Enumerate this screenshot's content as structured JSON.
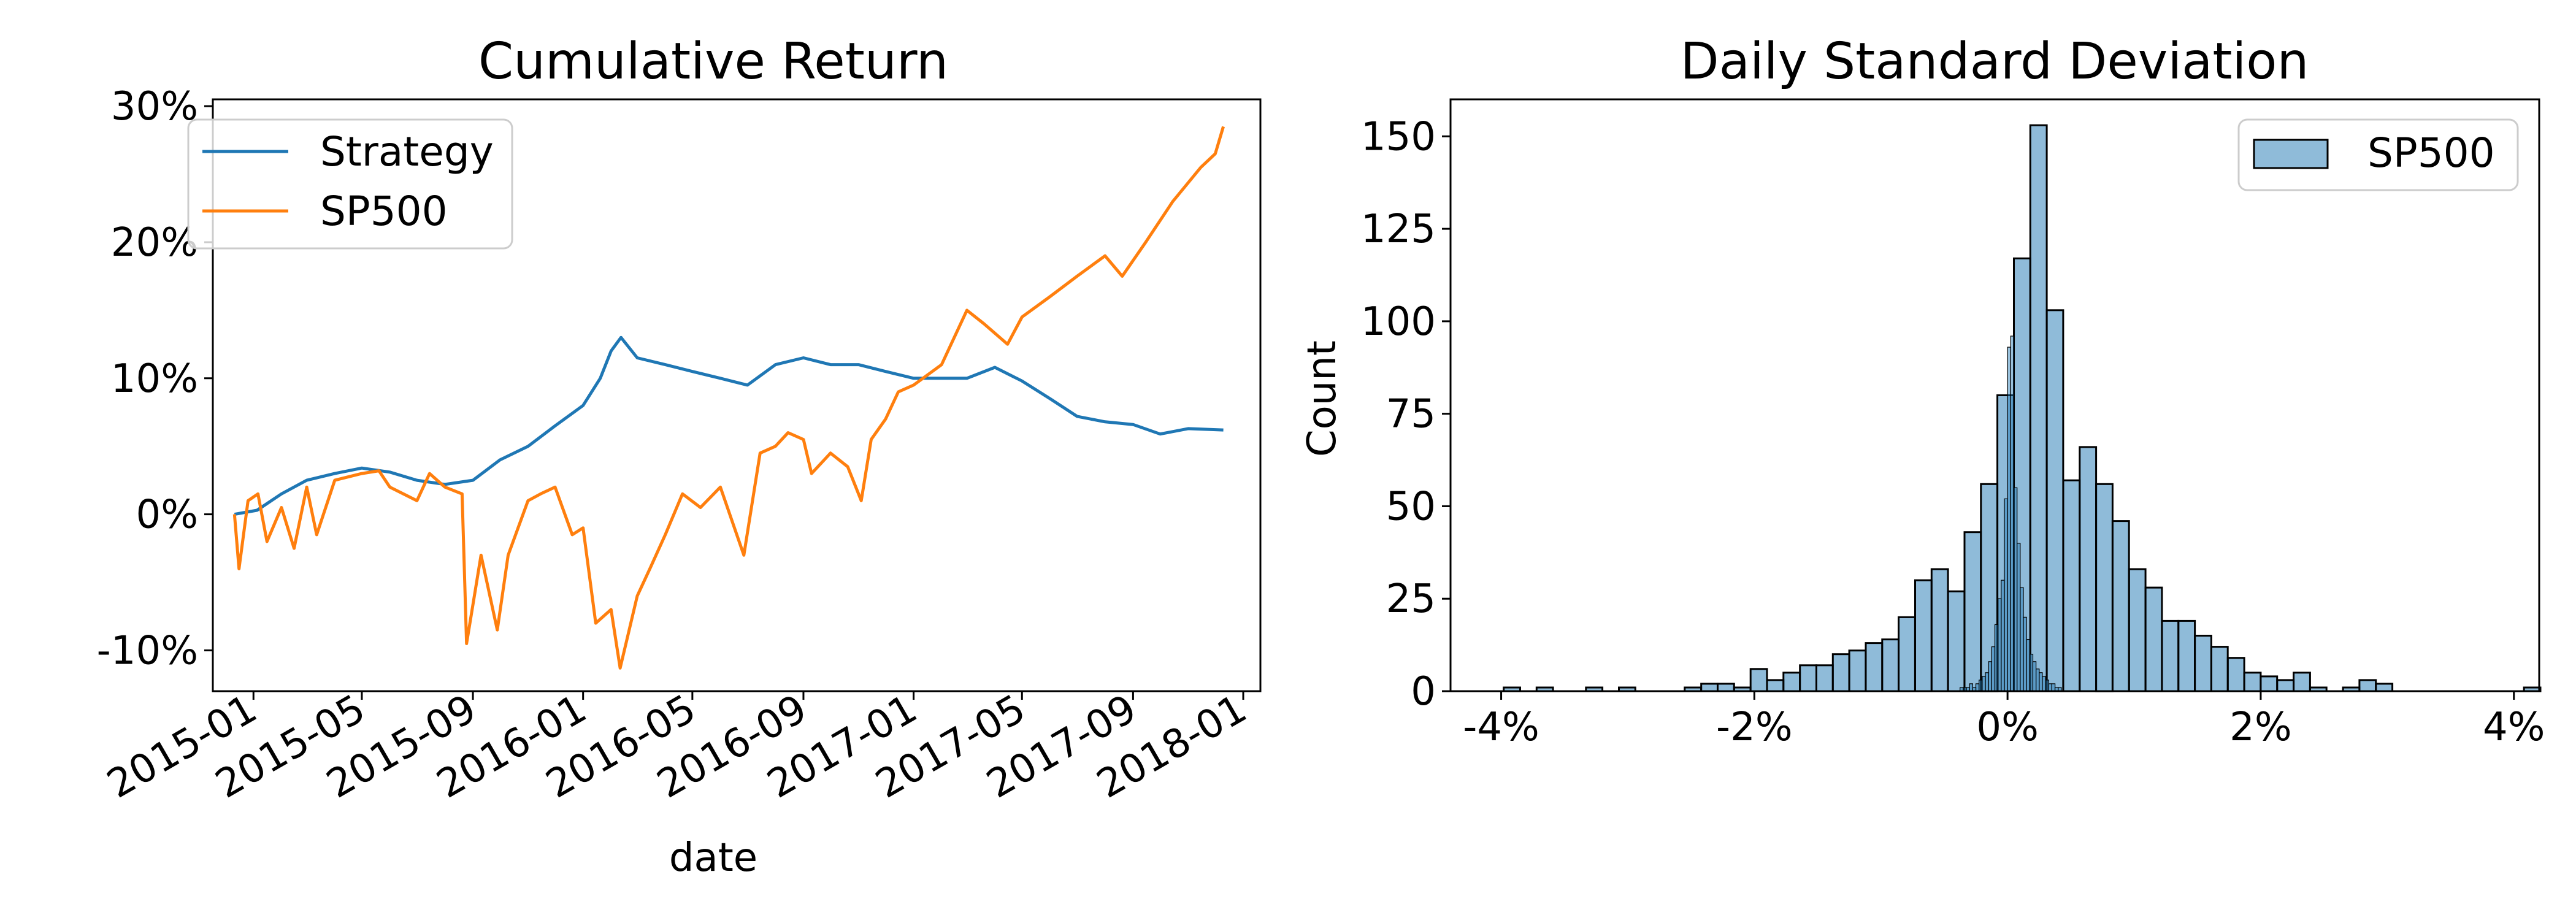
{
  "chart_data": [
    {
      "type": "line",
      "title": "Cumulative Return",
      "xlabel": "date",
      "ylabel": "",
      "x_tick_labels": [
        "2015-01",
        "2015-05",
        "2015-09",
        "2016-01",
        "2016-05",
        "2016-09",
        "2017-01",
        "2017-05",
        "2017-09",
        "2018-01"
      ],
      "y_tick_labels": [
        "-10%",
        "0%",
        "10%",
        "20%",
        "30%"
      ],
      "y_ticks": [
        -10,
        0,
        10,
        20,
        30
      ],
      "ylim": [
        -13,
        30.5
      ],
      "xlim": [
        "2014-11-17",
        "2018-01-20"
      ],
      "legend_position": "upper left",
      "series": [
        {
          "name": "Strategy",
          "color": "#1f77b4",
          "points": [
            [
              "2014-12-11",
              0.0
            ],
            [
              "2015-01-05",
              0.3
            ],
            [
              "2015-02-01",
              1.5
            ],
            [
              "2015-03-01",
              2.5
            ],
            [
              "2015-04-01",
              3.0
            ],
            [
              "2015-05-01",
              3.4
            ],
            [
              "2015-06-01",
              3.1
            ],
            [
              "2015-07-01",
              2.5
            ],
            [
              "2015-08-01",
              2.2
            ],
            [
              "2015-09-01",
              2.5
            ],
            [
              "2015-10-01",
              4.0
            ],
            [
              "2015-11-01",
              5.0
            ],
            [
              "2015-12-01",
              6.5
            ],
            [
              "2016-01-01",
              8.0
            ],
            [
              "2016-01-20",
              10.0
            ],
            [
              "2016-02-01",
              12.0
            ],
            [
              "2016-02-12",
              13.0
            ],
            [
              "2016-03-01",
              11.5
            ],
            [
              "2016-04-01",
              11.0
            ],
            [
              "2016-05-01",
              10.5
            ],
            [
              "2016-06-01",
              10.0
            ],
            [
              "2016-07-01",
              9.5
            ],
            [
              "2016-08-01",
              11.0
            ],
            [
              "2016-09-01",
              11.5
            ],
            [
              "2016-10-01",
              11.0
            ],
            [
              "2016-11-01",
              11.0
            ],
            [
              "2016-12-01",
              10.5
            ],
            [
              "2017-01-01",
              10.0
            ],
            [
              "2017-02-01",
              10.0
            ],
            [
              "2017-03-01",
              10.0
            ],
            [
              "2017-04-01",
              10.8
            ],
            [
              "2017-05-01",
              9.8
            ],
            [
              "2017-06-01",
              8.5
            ],
            [
              "2017-07-01",
              7.2
            ],
            [
              "2017-08-01",
              6.8
            ],
            [
              "2017-09-01",
              6.6
            ],
            [
              "2017-10-01",
              5.9
            ],
            [
              "2017-11-01",
              6.3
            ],
            [
              "2017-12-10",
              6.2
            ]
          ]
        },
        {
          "name": "SP500",
          "color": "#ff7f0e",
          "points": [
            [
              "2014-12-11",
              0.0
            ],
            [
              "2014-12-16",
              -4.0
            ],
            [
              "2014-12-26",
              1.0
            ],
            [
              "2015-01-06",
              1.5
            ],
            [
              "2015-01-16",
              -2.0
            ],
            [
              "2015-02-01",
              0.5
            ],
            [
              "2015-02-15",
              -2.5
            ],
            [
              "2015-03-01",
              2.0
            ],
            [
              "2015-03-12",
              -1.5
            ],
            [
              "2015-04-01",
              2.5
            ],
            [
              "2015-05-01",
              3.0
            ],
            [
              "2015-05-20",
              3.2
            ],
            [
              "2015-06-01",
              2.0
            ],
            [
              "2015-07-01",
              1.0
            ],
            [
              "2015-07-15",
              3.0
            ],
            [
              "2015-08-01",
              2.0
            ],
            [
              "2015-08-20",
              1.5
            ],
            [
              "2015-08-25",
              -9.5
            ],
            [
              "2015-09-10",
              -3.0
            ],
            [
              "2015-09-28",
              -8.5
            ],
            [
              "2015-10-10",
              -3.0
            ],
            [
              "2015-11-01",
              1.0
            ],
            [
              "2015-11-15",
              1.5
            ],
            [
              "2015-12-01",
              2.0
            ],
            [
              "2015-12-20",
              -1.5
            ],
            [
              "2016-01-01",
              -1.0
            ],
            [
              "2016-01-15",
              -8.0
            ],
            [
              "2016-02-01",
              -7.0
            ],
            [
              "2016-02-11",
              -11.3
            ],
            [
              "2016-03-01",
              -6.0
            ],
            [
              "2016-03-15",
              -4.0
            ],
            [
              "2016-04-01",
              -1.5
            ],
            [
              "2016-04-20",
              1.5
            ],
            [
              "2016-05-10",
              0.5
            ],
            [
              "2016-06-01",
              2.0
            ],
            [
              "2016-06-27",
              -3.0
            ],
            [
              "2016-07-15",
              4.5
            ],
            [
              "2016-08-01",
              5.0
            ],
            [
              "2016-08-15",
              6.0
            ],
            [
              "2016-09-01",
              5.5
            ],
            [
              "2016-09-10",
              3.0
            ],
            [
              "2016-10-01",
              4.5
            ],
            [
              "2016-10-20",
              3.5
            ],
            [
              "2016-11-04",
              1.0
            ],
            [
              "2016-11-15",
              5.5
            ],
            [
              "2016-12-01",
              7.0
            ],
            [
              "2016-12-15",
              9.0
            ],
            [
              "2017-01-01",
              9.5
            ],
            [
              "2017-02-01",
              11.0
            ],
            [
              "2017-03-01",
              15.0
            ],
            [
              "2017-03-20",
              14.0
            ],
            [
              "2017-04-15",
              12.5
            ],
            [
              "2017-05-01",
              14.5
            ],
            [
              "2017-06-01",
              16.0
            ],
            [
              "2017-07-01",
              17.5
            ],
            [
              "2017-08-01",
              19.0
            ],
            [
              "2017-08-20",
              17.5
            ],
            [
              "2017-09-15",
              20.0
            ],
            [
              "2017-10-15",
              23.0
            ],
            [
              "2017-11-15",
              25.5
            ],
            [
              "2017-12-01",
              26.5
            ],
            [
              "2017-12-10",
              28.5
            ]
          ]
        }
      ]
    },
    {
      "type": "bar",
      "subtype": "histogram",
      "title": "Daily Standard Deviation",
      "xlabel": "",
      "ylabel": "Count",
      "x_tick_labels": [
        "-4%",
        "-2%",
        "0%",
        "2%",
        "4%"
      ],
      "x_ticks": [
        -4,
        -2,
        0,
        2,
        4
      ],
      "y_tick_labels": [
        "0",
        "25",
        "50",
        "75",
        "100",
        "125",
        "150"
      ],
      "y_ticks": [
        0,
        25,
        50,
        75,
        100,
        125,
        150
      ],
      "xlim": [
        -4.4,
        4.2
      ],
      "ylim": [
        0,
        160
      ],
      "legend_position": "upper right",
      "series": [
        {
          "name": "SP500",
          "color": "#1f77b4",
          "bin_width": 0.13,
          "bin_start": -3.98,
          "values": [
            1,
            0,
            1,
            0,
            0,
            1,
            0,
            1,
            0,
            0,
            0,
            1,
            2,
            2,
            1,
            6,
            3,
            5,
            7,
            7,
            10,
            11,
            13,
            14,
            20,
            30,
            33,
            27,
            43,
            56,
            80,
            117,
            153,
            103,
            57,
            66,
            56,
            46,
            33,
            28,
            19,
            19,
            15,
            12,
            9,
            5,
            4,
            3,
            5,
            1,
            0,
            1,
            3,
            2,
            0,
            0,
            0,
            0,
            0,
            0,
            0,
            0,
            1
          ]
        },
        {
          "name": "",
          "color": "#1f77b4",
          "bin_width": 0.025,
          "bin_start": -0.4,
          "values": [
            0,
            1,
            1,
            1,
            2,
            1,
            2,
            3,
            4,
            5,
            8,
            12,
            18,
            25,
            30,
            52,
            93,
            96,
            55,
            40,
            28,
            20,
            14,
            10,
            8,
            6,
            5,
            4,
            3,
            2,
            2,
            1,
            1
          ]
        }
      ]
    }
  ]
}
